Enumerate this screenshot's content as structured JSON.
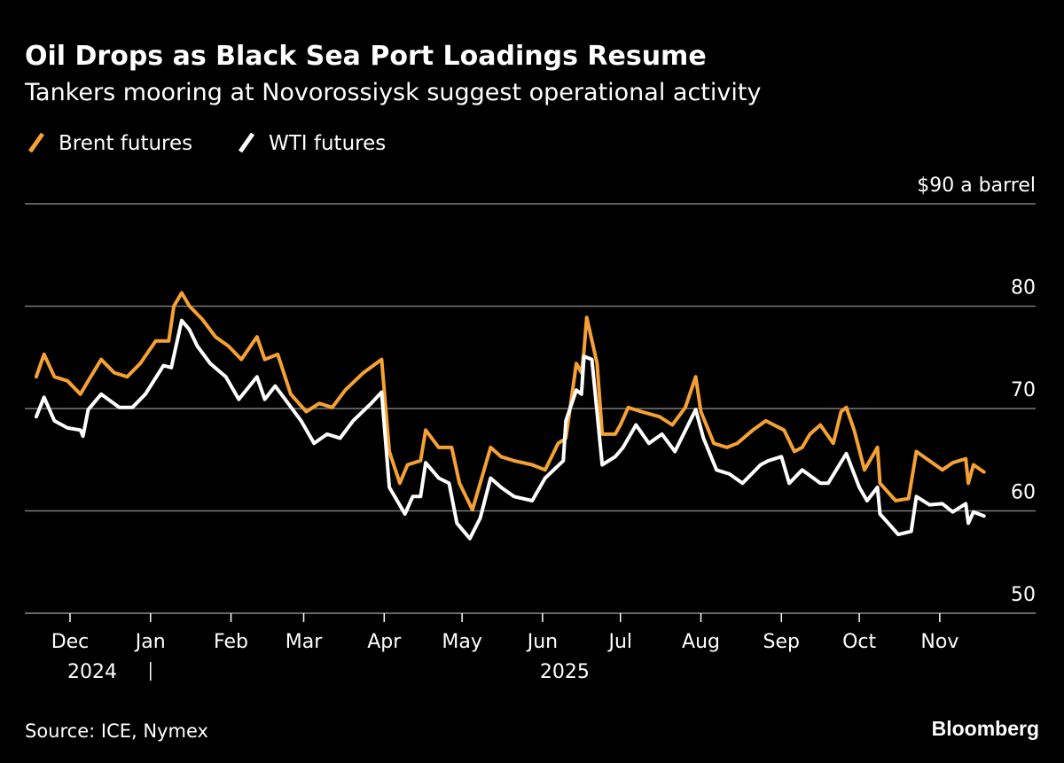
{
  "title": "Oil Drops as Black Sea Port Loadings Resume",
  "subtitle": "Tankers mooring at Novorossiysk suggest operational activity",
  "source": "Source: ICE, Nymex",
  "brand": "Bloomberg",
  "colors": {
    "background": "#000000",
    "brent": "#f5a134",
    "wti": "#ffffff",
    "grid": "#7a7a7a"
  },
  "chart_data": {
    "type": "line",
    "title": "Oil Drops as Black Sea Port Loadings Resume",
    "subtitle": "Tankers mooring at Novorossiysk suggest operational activity",
    "ylabel": "$90 a barrel",
    "ylim": [
      50,
      90
    ],
    "yticks": [
      50,
      60,
      70,
      80,
      90
    ],
    "ytick_labels": [
      "50",
      "60",
      "70",
      "80",
      "$90 a barrel"
    ],
    "xlim": [
      "2024-11-18",
      "2025-11-18"
    ],
    "xticks": [
      "2024-12-01",
      "2025-01-01",
      "2025-02-01",
      "2025-03-01",
      "2025-04-01",
      "2025-05-01",
      "2025-06-01",
      "2025-07-01",
      "2025-08-01",
      "2025-09-01",
      "2025-10-01",
      "2025-11-01"
    ],
    "xtick_labels": [
      "Dec",
      "Jan",
      "Feb",
      "Mar",
      "Apr",
      "May",
      "Jun",
      "Jul",
      "Aug",
      "Sep",
      "Oct",
      "Nov"
    ],
    "year_labels": [
      {
        "label": "2024",
        "at": "2024-12-01"
      },
      {
        "label": "2025",
        "at": "2025-06-01"
      }
    ],
    "grid": true,
    "legend": "top-left",
    "series": [
      {
        "name": "Brent futures",
        "color": "#f5a134",
        "points": [
          [
            "2024-11-18",
            73.1
          ],
          [
            "2024-11-21",
            75.3
          ],
          [
            "2024-11-25",
            73.1
          ],
          [
            "2024-11-30",
            72.7
          ],
          [
            "2024-12-05",
            71.4
          ],
          [
            "2024-12-08",
            72.7
          ],
          [
            "2024-12-13",
            74.8
          ],
          [
            "2024-12-18",
            73.5
          ],
          [
            "2024-12-23",
            73.1
          ],
          [
            "2024-12-28",
            74.4
          ],
          [
            "2025-01-03",
            76.6
          ],
          [
            "2025-01-08",
            76.6
          ],
          [
            "2025-01-10",
            80.0
          ],
          [
            "2025-01-13",
            81.3
          ],
          [
            "2025-01-16",
            80.0
          ],
          [
            "2025-01-21",
            78.7
          ],
          [
            "2025-01-26",
            77.0
          ],
          [
            "2025-01-31",
            76.1
          ],
          [
            "2025-02-05",
            74.8
          ],
          [
            "2025-02-11",
            77.0
          ],
          [
            "2025-02-14",
            74.8
          ],
          [
            "2025-02-19",
            75.3
          ],
          [
            "2025-02-24",
            71.4
          ],
          [
            "2025-03-02",
            69.7
          ],
          [
            "2025-03-07",
            70.5
          ],
          [
            "2025-03-12",
            70.1
          ],
          [
            "2025-03-17",
            71.8
          ],
          [
            "2025-03-24",
            73.5
          ],
          [
            "2025-03-31",
            74.8
          ],
          [
            "2025-04-03",
            65.8
          ],
          [
            "2025-04-07",
            62.7
          ],
          [
            "2025-04-10",
            64.5
          ],
          [
            "2025-04-15",
            64.9
          ],
          [
            "2025-04-17",
            67.9
          ],
          [
            "2025-04-22",
            66.2
          ],
          [
            "2025-04-27",
            66.2
          ],
          [
            "2025-04-30",
            62.7
          ],
          [
            "2025-05-05",
            60.1
          ],
          [
            "2025-05-09",
            63.6
          ],
          [
            "2025-05-12",
            66.2
          ],
          [
            "2025-05-16",
            65.3
          ],
          [
            "2025-05-21",
            64.9
          ],
          [
            "2025-05-28",
            64.5
          ],
          [
            "2025-06-02",
            64.0
          ],
          [
            "2025-06-07",
            66.6
          ],
          [
            "2025-06-10",
            67.1
          ],
          [
            "2025-06-14",
            74.4
          ],
          [
            "2025-06-16",
            73.5
          ],
          [
            "2025-06-17",
            75.7
          ],
          [
            "2025-06-18",
            78.9
          ],
          [
            "2025-06-22",
            74.4
          ],
          [
            "2025-06-24",
            67.5
          ],
          [
            "2025-06-29",
            67.5
          ],
          [
            "2025-07-01",
            68.4
          ],
          [
            "2025-07-04",
            70.1
          ],
          [
            "2025-07-09",
            69.7
          ],
          [
            "2025-07-16",
            69.2
          ],
          [
            "2025-07-21",
            68.4
          ],
          [
            "2025-07-26",
            70.1
          ],
          [
            "2025-07-30",
            73.1
          ],
          [
            "2025-08-01",
            69.7
          ],
          [
            "2025-08-06",
            66.6
          ],
          [
            "2025-08-11",
            66.2
          ],
          [
            "2025-08-15",
            66.6
          ],
          [
            "2025-08-21",
            67.9
          ],
          [
            "2025-08-26",
            68.8
          ],
          [
            "2025-09-02",
            67.9
          ],
          [
            "2025-09-06",
            65.8
          ],
          [
            "2025-09-09",
            66.2
          ],
          [
            "2025-09-12",
            67.5
          ],
          [
            "2025-09-16",
            68.4
          ],
          [
            "2025-09-21",
            66.6
          ],
          [
            "2025-09-24",
            69.7
          ],
          [
            "2025-09-26",
            70.1
          ],
          [
            "2025-09-29",
            67.9
          ],
          [
            "2025-10-03",
            64.0
          ],
          [
            "2025-10-08",
            66.2
          ],
          [
            "2025-10-09",
            62.7
          ],
          [
            "2025-10-15",
            61.0
          ],
          [
            "2025-10-20",
            61.2
          ],
          [
            "2025-10-23",
            65.8
          ],
          [
            "2025-10-28",
            64.9
          ],
          [
            "2025-11-02",
            64.0
          ],
          [
            "2025-11-06",
            64.7
          ],
          [
            "2025-11-11",
            65.1
          ],
          [
            "2025-11-12",
            62.7
          ],
          [
            "2025-11-14",
            64.5
          ],
          [
            "2025-11-18",
            63.8
          ]
        ]
      },
      {
        "name": "WTI futures",
        "color": "#ffffff",
        "points": [
          [
            "2024-11-18",
            69.2
          ],
          [
            "2024-11-21",
            71.1
          ],
          [
            "2024-11-25",
            68.8
          ],
          [
            "2024-11-30",
            68.1
          ],
          [
            "2024-12-05",
            67.9
          ],
          [
            "2024-12-06",
            67.3
          ],
          [
            "2024-12-08",
            69.9
          ],
          [
            "2024-12-13",
            71.4
          ],
          [
            "2024-12-20",
            70.1
          ],
          [
            "2024-12-25",
            70.1
          ],
          [
            "2024-12-30",
            71.4
          ],
          [
            "2025-01-06",
            74.2
          ],
          [
            "2025-01-09",
            74.0
          ],
          [
            "2025-01-13",
            78.6
          ],
          [
            "2025-01-16",
            77.7
          ],
          [
            "2025-01-19",
            76.1
          ],
          [
            "2025-01-24",
            74.4
          ],
          [
            "2025-01-30",
            73.1
          ],
          [
            "2025-02-04",
            70.9
          ],
          [
            "2025-02-11",
            73.1
          ],
          [
            "2025-02-14",
            70.9
          ],
          [
            "2025-02-18",
            72.2
          ],
          [
            "2025-02-23",
            70.5
          ],
          [
            "2025-02-28",
            68.8
          ],
          [
            "2025-03-05",
            66.6
          ],
          [
            "2025-03-10",
            67.5
          ],
          [
            "2025-03-15",
            67.1
          ],
          [
            "2025-03-20",
            68.8
          ],
          [
            "2025-03-27",
            70.5
          ],
          [
            "2025-03-31",
            71.6
          ],
          [
            "2025-04-03",
            62.3
          ],
          [
            "2025-04-09",
            59.7
          ],
          [
            "2025-04-12",
            61.4
          ],
          [
            "2025-04-15",
            61.4
          ],
          [
            "2025-04-17",
            64.7
          ],
          [
            "2025-04-22",
            63.2
          ],
          [
            "2025-04-26",
            62.7
          ],
          [
            "2025-04-29",
            58.8
          ],
          [
            "2025-05-04",
            57.3
          ],
          [
            "2025-05-08",
            59.3
          ],
          [
            "2025-05-12",
            63.2
          ],
          [
            "2025-05-16",
            62.3
          ],
          [
            "2025-05-21",
            61.4
          ],
          [
            "2025-05-28",
            61.0
          ],
          [
            "2025-06-02",
            63.2
          ],
          [
            "2025-06-09",
            64.9
          ],
          [
            "2025-06-10",
            68.8
          ],
          [
            "2025-06-14",
            71.8
          ],
          [
            "2025-06-16",
            71.4
          ],
          [
            "2025-06-17",
            75.1
          ],
          [
            "2025-06-20",
            74.8
          ],
          [
            "2025-06-24",
            64.5
          ],
          [
            "2025-06-29",
            65.3
          ],
          [
            "2025-07-02",
            66.2
          ],
          [
            "2025-07-07",
            68.4
          ],
          [
            "2025-07-12",
            66.6
          ],
          [
            "2025-07-17",
            67.5
          ],
          [
            "2025-07-22",
            65.8
          ],
          [
            "2025-07-30",
            69.9
          ],
          [
            "2025-08-02",
            67.1
          ],
          [
            "2025-08-07",
            64.0
          ],
          [
            "2025-08-12",
            63.6
          ],
          [
            "2025-08-17",
            62.7
          ],
          [
            "2025-08-24",
            64.5
          ],
          [
            "2025-08-27",
            64.9
          ],
          [
            "2025-09-01",
            65.3
          ],
          [
            "2025-09-04",
            62.7
          ],
          [
            "2025-09-09",
            64.0
          ],
          [
            "2025-09-16",
            62.7
          ],
          [
            "2025-09-19",
            62.7
          ],
          [
            "2025-09-26",
            65.6
          ],
          [
            "2025-10-01",
            62.3
          ],
          [
            "2025-10-04",
            61.0
          ],
          [
            "2025-10-08",
            62.3
          ],
          [
            "2025-10-09",
            59.7
          ],
          [
            "2025-10-16",
            57.7
          ],
          [
            "2025-10-21",
            58.0
          ],
          [
            "2025-10-23",
            61.4
          ],
          [
            "2025-10-28",
            60.6
          ],
          [
            "2025-11-02",
            60.7
          ],
          [
            "2025-11-06",
            59.9
          ],
          [
            "2025-11-11",
            60.7
          ],
          [
            "2025-11-12",
            58.8
          ],
          [
            "2025-11-14",
            59.9
          ],
          [
            "2025-11-18",
            59.5
          ]
        ]
      }
    ]
  }
}
